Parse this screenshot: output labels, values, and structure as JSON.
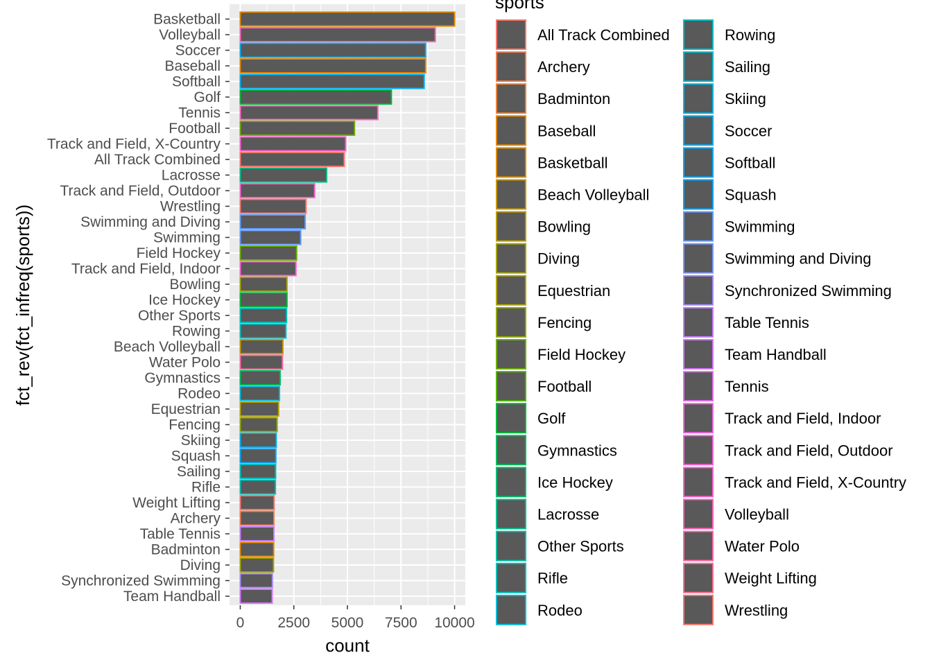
{
  "chart_data": {
    "type": "bar",
    "orientation": "horizontal",
    "xlabel": "count",
    "ylabel": "fct_rev(fct_infreq(sports))",
    "xlim": [
      -500,
      10500
    ],
    "xticks": [
      0,
      2500,
      5000,
      7500,
      10000
    ],
    "xtick_labels": [
      "0",
      "2500",
      "5000",
      "7500",
      "10000"
    ],
    "grid": true,
    "panel_background": "#ebebeb",
    "bar_fill": "#595959",
    "categories": [
      "Basketball",
      "Volleyball",
      "Soccer",
      "Baseball",
      "Softball",
      "Golf",
      "Tennis",
      "Football",
      "Track and Field, X-Country",
      "All Track Combined",
      "Lacrosse",
      "Track and Field, Outdoor",
      "Wrestling",
      "Swimming and Diving",
      "Swimming",
      "Field Hockey",
      "Track and Field, Indoor",
      "Bowling",
      "Ice Hockey",
      "Other Sports",
      "Rowing",
      "Beach Volleyball",
      "Water Polo",
      "Gymnastics",
      "Rodeo",
      "Equestrian",
      "Fencing",
      "Skiing",
      "Squash",
      "Sailing",
      "Rifle",
      "Weight Lifting",
      "Archery",
      "Table Tennis",
      "Badminton",
      "Diving",
      "Synchronized Swimming",
      "Team Handball"
    ],
    "values": [
      10000,
      9100,
      8650,
      8650,
      8580,
      7050,
      6420,
      5330,
      4920,
      4850,
      4030,
      3470,
      3070,
      3030,
      2820,
      2630,
      2600,
      2180,
      2180,
      2160,
      2130,
      1990,
      1970,
      1860,
      1830,
      1790,
      1720,
      1680,
      1660,
      1650,
      1640,
      1580,
      1570,
      1570,
      1560,
      1550,
      1500,
      1490
    ],
    "bar_colors": [
      "#E58700",
      "#FF62BC",
      "#00B0F6",
      "#E58700",
      "#00B0F6",
      "#00BA38",
      "#FF6AC2",
      "#6BB100",
      "#FE61CF",
      "#F8766D",
      "#00C08B",
      "#FD61D1",
      "#F8766D",
      "#619CFF",
      "#619CFF",
      "#6BB100",
      "#FC61D5",
      "#A3A500",
      "#00BA38",
      "#00C0B8",
      "#00BFC4",
      "#C99800",
      "#FF67A4",
      "#00BC59",
      "#00BCD8",
      "#B9A000",
      "#8EAB00",
      "#00B2F3",
      "#00A9FF",
      "#00BFC4",
      "#00C0B8",
      "#F8766D",
      "#F17D4D",
      "#C77CFF",
      "#E58700",
      "#A3A500",
      "#A58AFF",
      "#D575FE"
    ],
    "legend": {
      "title": "sports",
      "placement": "right",
      "columns": [
        [
          {
            "label": "All Track Combined",
            "color": "#F8766D"
          },
          {
            "label": "Archery",
            "color": "#F17D4D"
          },
          {
            "label": "Badminton",
            "color": "#EC8239"
          },
          {
            "label": "Baseball",
            "color": "#E58700"
          },
          {
            "label": "Basketball",
            "color": "#DE8C00"
          },
          {
            "label": "Beach Volleyball",
            "color": "#C99800"
          },
          {
            "label": "Bowling",
            "color": "#BB9D00"
          },
          {
            "label": "Diving",
            "color": "#A3A500"
          },
          {
            "label": "Equestrian",
            "color": "#B0A600"
          },
          {
            "label": "Fencing",
            "color": "#8EAB00"
          },
          {
            "label": "Field Hockey",
            "color": "#6BB100"
          },
          {
            "label": "Football",
            "color": "#53B400"
          },
          {
            "label": "Golf",
            "color": "#00BA38"
          },
          {
            "label": "Gymnastics",
            "color": "#00BC59"
          },
          {
            "label": "Ice Hockey",
            "color": "#00BD70"
          },
          {
            "label": "Lacrosse",
            "color": "#00C08B"
          },
          {
            "label": "Other Sports",
            "color": "#00C0A3"
          },
          {
            "label": "Rifle",
            "color": "#00C0B8"
          },
          {
            "label": "Rodeo",
            "color": "#00BCD8"
          }
        ],
        [
          {
            "label": "Rowing",
            "color": "#00BFC4"
          },
          {
            "label": "Sailing",
            "color": "#00BDD4"
          },
          {
            "label": "Skiing",
            "color": "#00B8E5"
          },
          {
            "label": "Soccer",
            "color": "#00B0F6"
          },
          {
            "label": "Softball",
            "color": "#00ABFD"
          },
          {
            "label": "Squash",
            "color": "#00A5FF"
          },
          {
            "label": "Swimming",
            "color": "#619CFF"
          },
          {
            "label": "Swimming and Diving",
            "color": "#7997FF"
          },
          {
            "label": "Synchronized Swimming",
            "color": "#A58AFF"
          },
          {
            "label": "Table Tennis",
            "color": "#C77CFF"
          },
          {
            "label": "Team Handball",
            "color": "#D575FE"
          },
          {
            "label": "Tennis",
            "color": "#E76BF3"
          },
          {
            "label": "Track and Field, Indoor",
            "color": "#F265E7"
          },
          {
            "label": "Track and Field, Outdoor",
            "color": "#FA62DB"
          },
          {
            "label": "Track and Field, X-Country",
            "color": "#FE61CF"
          },
          {
            "label": "Volleyball",
            "color": "#FF62BC"
          },
          {
            "label": "Water Polo",
            "color": "#FF67A4"
          },
          {
            "label": "Weight Lifting",
            "color": "#FF6C91"
          },
          {
            "label": "Wrestling",
            "color": "#F8766D"
          }
        ]
      ]
    }
  }
}
